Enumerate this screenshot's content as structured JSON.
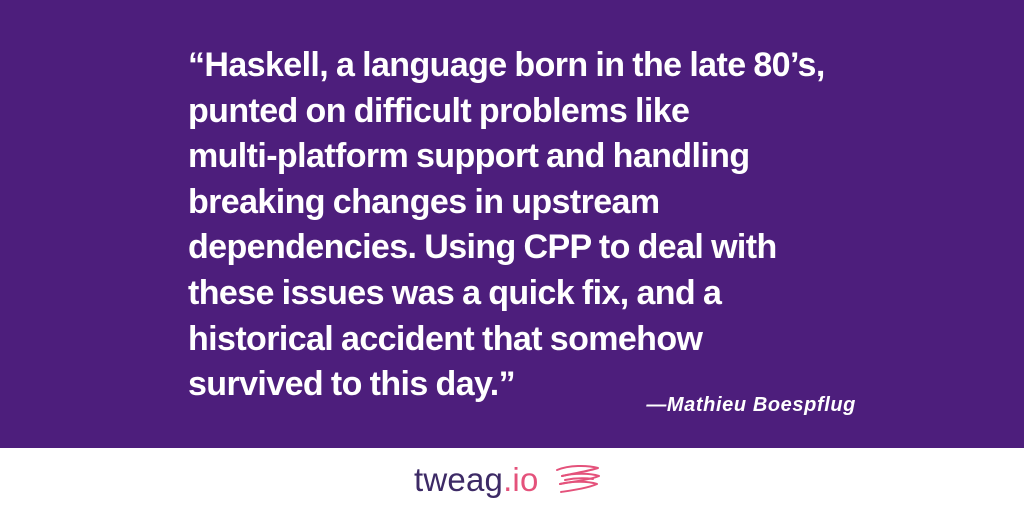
{
  "quote": {
    "lines": [
      "“Haskell, a language born in the late 80’s,",
      "punted on difficult problems like",
      "multi-platform support and handling",
      "breaking changes in upstream",
      "dependencies. Using CPP to deal with",
      "these issues was a quick fix, and a",
      "historical accident that somehow",
      "survived to this day.”"
    ],
    "attribution": "—Mathieu Boespflug"
  },
  "footer": {
    "brand_word": "tweag",
    "brand_tld": ".io",
    "logo_icon": "tweag-swirl-logo-icon"
  },
  "colors": {
    "panel_background": "#4d1e7c",
    "text": "#ffffff",
    "brand_dark": "#3d2a66",
    "brand_accent": "#e4527b"
  }
}
